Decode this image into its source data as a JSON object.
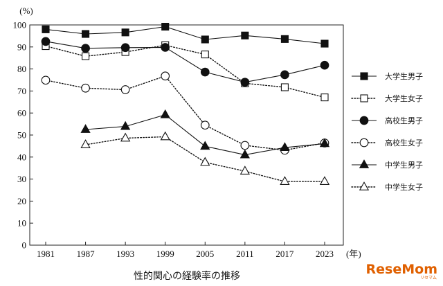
{
  "chart_data": {
    "type": "line",
    "title": "",
    "caption": "性的関心の経験率の推移",
    "ylabel": "(%)",
    "xlabel": "(年)",
    "ylim": [
      0,
      100
    ],
    "yticks": [
      0,
      10,
      20,
      30,
      40,
      50,
      60,
      70,
      80,
      90,
      100
    ],
    "categories": [
      "1981",
      "1987",
      "1993",
      "1999",
      "2005",
      "2011",
      "2017",
      "2023"
    ],
    "legend_position": "right",
    "grid": false,
    "series": [
      {
        "name": "大学生男子",
        "marker": "square",
        "filled": true,
        "dashed": false,
        "values": [
          98.0,
          95.9,
          96.6,
          99.2,
          93.4,
          95.2,
          93.6,
          91.5
        ]
      },
      {
        "name": "大学生女子",
        "marker": "square",
        "filled": false,
        "dashed": true,
        "values": [
          90.4,
          85.8,
          87.7,
          90.8,
          86.6,
          73.5,
          71.7,
          67.1
        ]
      },
      {
        "name": "高校生男子",
        "marker": "circle",
        "filled": true,
        "dashed": false,
        "values": [
          92.5,
          89.4,
          89.7,
          89.8,
          78.6,
          74.0,
          77.4,
          81.7
        ]
      },
      {
        "name": "高校生女子",
        "marker": "circle",
        "filled": false,
        "dashed": true,
        "values": [
          74.9,
          71.3,
          70.6,
          76.8,
          54.5,
          45.3,
          43.1,
          46.4
        ]
      },
      {
        "name": "中学生男子",
        "marker": "triangle",
        "filled": true,
        "dashed": false,
        "values": [
          null,
          52.5,
          53.9,
          59.2,
          44.9,
          41.0,
          44.3,
          46.1
        ]
      },
      {
        "name": "中学生女子",
        "marker": "triangle",
        "filled": false,
        "dashed": true,
        "values": [
          null,
          45.6,
          48.6,
          49.2,
          37.6,
          33.6,
          28.9,
          28.9
        ]
      }
    ]
  },
  "watermark": {
    "main": "ReseMom",
    "sub": "リセマム"
  }
}
